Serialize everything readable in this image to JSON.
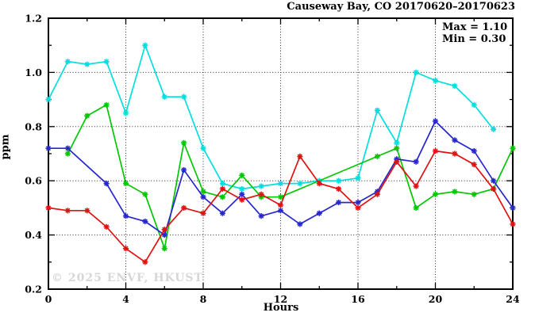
{
  "title": "Causeway Bay, CO 20170620–20170623",
  "annotation": {
    "max": "Max = 1.10",
    "min": "Min = 0.30"
  },
  "watermark": "© 2025 ENVF, HKUST",
  "chart_data": {
    "type": "line",
    "title": "Causeway Bay, CO 20170620–20170623",
    "xlabel": "Hours",
    "ylabel": "ppm",
    "xlim": [
      0,
      24
    ],
    "ylim": [
      0.2,
      1.2
    ],
    "grid": "dotted",
    "legend_position": "none",
    "annotations": [
      "Max = 1.10",
      "Min = 0.30"
    ],
    "x": [
      0,
      1,
      2,
      3,
      4,
      5,
      6,
      7,
      8,
      9,
      10,
      11,
      12,
      13,
      14,
      15,
      16,
      17,
      18,
      19,
      20,
      21,
      22,
      23,
      24
    ],
    "x_major_ticks": [
      0,
      4,
      8,
      12,
      16,
      20,
      24
    ],
    "x_tick_labels": [
      "0",
      "4",
      "8",
      "12",
      "16",
      "20",
      "24"
    ],
    "x_minor_ticks": [
      2,
      6,
      10,
      14,
      18,
      22
    ],
    "y_major_ticks": [
      0.2,
      0.4,
      0.6,
      0.8,
      1.0,
      1.2
    ],
    "y_tick_labels": [
      "0.2",
      "0.4",
      "0.6",
      "0.8",
      "1.0",
      "1.2"
    ],
    "y_minor_ticks": [
      0.3,
      0.5,
      0.7,
      0.9,
      1.1
    ],
    "x_gridlines": [
      4,
      8,
      12,
      16,
      20
    ],
    "y_gridlines": [
      0.4,
      0.6,
      0.8,
      1.0
    ],
    "series": [
      {
        "name": "cyan-series",
        "color": "#00dfdf",
        "values": [
          0.9,
          1.04,
          1.03,
          1.04,
          0.85,
          1.1,
          0.91,
          0.91,
          0.72,
          0.59,
          0.57,
          0.58,
          0.59,
          0.59,
          0.6,
          0.6,
          0.61,
          0.86,
          0.74,
          1.0,
          0.97,
          0.95,
          0.88,
          0.79,
          null
        ]
      },
      {
        "name": "green-series",
        "color": "#00c800",
        "values": [
          null,
          0.7,
          0.84,
          0.88,
          0.59,
          0.55,
          0.35,
          0.74,
          0.56,
          0.54,
          0.62,
          0.54,
          0.54,
          null,
          null,
          null,
          null,
          0.69,
          0.72,
          0.5,
          0.55,
          0.56,
          0.55,
          0.57,
          0.72
        ]
      },
      {
        "name": "blue-series",
        "color": "#2727cf",
        "values": [
          0.72,
          0.72,
          null,
          0.59,
          0.47,
          0.45,
          0.4,
          0.64,
          0.54,
          0.48,
          0.55,
          0.47,
          0.49,
          0.44,
          0.48,
          0.52,
          0.52,
          0.56,
          0.68,
          0.67,
          0.82,
          0.75,
          0.71,
          0.6,
          0.5
        ]
      },
      {
        "name": "red-series",
        "color": "#e01212",
        "values": [
          0.5,
          0.49,
          0.49,
          0.43,
          0.35,
          0.3,
          0.42,
          0.5,
          0.48,
          0.57,
          0.53,
          0.55,
          0.51,
          0.69,
          0.59,
          0.57,
          0.5,
          0.55,
          0.67,
          0.58,
          0.71,
          0.7,
          0.66,
          0.57,
          0.44
        ]
      }
    ]
  }
}
